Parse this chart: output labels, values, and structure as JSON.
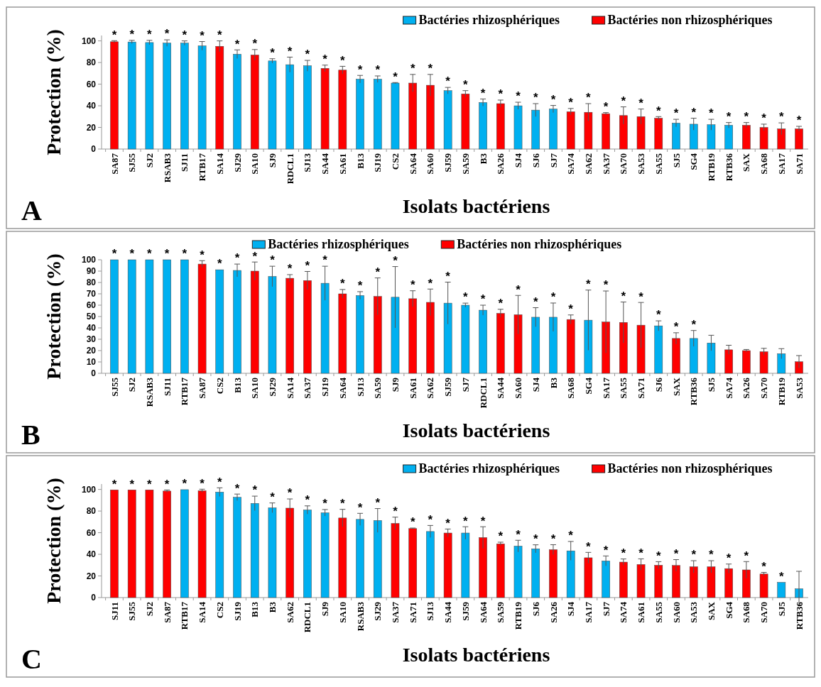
{
  "chart_data": [
    {
      "type": "bar",
      "xlabel": "Isolats bactériens",
      "ylabel": "Protection (%)",
      "annotations": [
        "A"
      ],
      "legend": "top right",
      "ylim": [
        0,
        105
      ],
      "yticks": [
        0,
        20,
        40,
        60,
        80,
        100
      ],
      "categories": [
        "SA87",
        "SJ55",
        "SJ2",
        "RSAB3",
        "SJ11",
        "RTB17",
        "SA14",
        "SJ29",
        "SA10",
        "SJ9",
        "RDCL1",
        "SJ13",
        "SA44",
        "SA61",
        "B13",
        "SJ19",
        "CS2",
        "SA64",
        "SA60",
        "SJ59",
        "SA59",
        "B3",
        "SA26",
        "SJ4",
        "SJ6",
        "SJ7",
        "SA74",
        "SA62",
        "SA37",
        "SA70",
        "SA53",
        "SA55",
        "SJ5",
        "SG4",
        "RTB19",
        "RTB36",
        "SAX",
        "SA68",
        "SA17",
        "SA71"
      ],
      "series": [
        {
          "name": "Bactéries rhizosphériques",
          "color": "#00b0f0",
          "values": [
            null,
            99,
            98.5,
            98,
            98,
            95.4,
            null,
            87.7,
            null,
            81.5,
            78,
            77,
            null,
            null,
            64.6,
            64.6,
            61,
            null,
            null,
            54,
            null,
            43,
            null,
            40,
            36,
            37,
            null,
            null,
            null,
            null,
            null,
            null,
            24,
            23,
            22.5,
            22,
            null,
            null,
            null,
            null
          ],
          "errors": [
            null,
            1.5,
            2,
            3,
            2,
            4,
            null,
            4,
            null,
            2,
            7,
            5,
            null,
            null,
            3.5,
            3,
            0.5,
            null,
            null,
            3,
            null,
            3.3,
            null,
            3.3,
            6,
            3.3,
            null,
            null,
            null,
            null,
            null,
            null,
            3.5,
            5.5,
            5,
            2.5,
            null,
            null,
            null,
            null
          ],
          "value_labels": [
            null,
            "*",
            "*",
            "*",
            "*",
            "*",
            null,
            "*",
            null,
            "*",
            "*",
            "*",
            null,
            null,
            "*",
            "*",
            "*",
            null,
            null,
            "*",
            null,
            "*",
            null,
            "*",
            "*",
            "*",
            null,
            null,
            null,
            null,
            null,
            null,
            "*",
            "*",
            "*",
            "*",
            null,
            null,
            null,
            null
          ]
        },
        {
          "name": "Bactéries non rhizosphériques",
          "color": "#ff0000",
          "values": [
            99.2,
            null,
            null,
            null,
            null,
            null,
            95,
            null,
            87,
            null,
            null,
            null,
            74.6,
            73,
            null,
            null,
            null,
            61,
            59,
            null,
            51,
            null,
            42,
            null,
            null,
            null,
            34.5,
            34,
            32.7,
            31,
            30,
            28.5,
            null,
            null,
            null,
            null,
            22,
            20,
            18.7,
            18.7
          ],
          "errors": [
            1,
            null,
            null,
            null,
            null,
            null,
            5,
            null,
            5,
            null,
            null,
            null,
            3,
            3.5,
            null,
            null,
            null,
            8,
            10,
            null,
            3,
            null,
            3.3,
            null,
            null,
            null,
            3,
            8,
            1,
            8,
            7,
            1.5,
            null,
            null,
            null,
            null,
            2.5,
            3,
            5.5,
            2.3
          ],
          "value_labels": [
            "*",
            null,
            null,
            null,
            null,
            null,
            "*",
            null,
            "*",
            null,
            null,
            null,
            "*",
            "*",
            null,
            null,
            null,
            "*",
            "*",
            null,
            "*",
            null,
            "*",
            null,
            null,
            null,
            "*",
            "*",
            "*",
            "*",
            "*",
            "*",
            null,
            null,
            null,
            null,
            "*",
            "*",
            "*",
            "*"
          ]
        }
      ]
    },
    {
      "type": "bar",
      "xlabel": "Isolats bactériens",
      "ylabel": "Protection (%)",
      "annotations": [
        "B"
      ],
      "legend": "top",
      "ylim": [
        0,
        100
      ],
      "yticks": [
        0,
        10,
        20,
        30,
        40,
        50,
        60,
        70,
        80,
        90,
        100
      ],
      "categories": [
        "SJ55",
        "SJ2",
        "RSAB3",
        "SJ11",
        "RTB17",
        "SA87",
        "CS2",
        "B13",
        "SA10",
        "SJ29",
        "SA14",
        "SA37",
        "SJ19",
        "SA64",
        "SJ13",
        "SA59",
        "SJ9",
        "SA61",
        "SA62",
        "SJ59",
        "SJ7",
        "RDCL1",
        "SA44",
        "SA60",
        "SJ4",
        "B3",
        "SA68",
        "SG4",
        "SA17",
        "SA55",
        "SA71",
        "SJ6",
        "SAX",
        "RTB36",
        "SJ5",
        "SA74",
        "SA26",
        "SA70",
        "RTB19",
        "SA53"
      ],
      "series": [
        {
          "name": "Bactéries rhizosphériques",
          "color": "#00b0f0",
          "values": [
            100,
            100,
            100,
            100,
            100,
            null,
            91.2,
            90.6,
            null,
            85.3,
            null,
            null,
            79.3,
            null,
            68.5,
            null,
            67,
            null,
            null,
            61.8,
            60,
            55.6,
            null,
            null,
            49.4,
            49.4,
            null,
            46.8,
            null,
            null,
            null,
            41.8,
            null,
            30.7,
            26.7,
            null,
            null,
            null,
            17.3,
            null
          ],
          "errors": [
            null,
            null,
            null,
            null,
            null,
            null,
            null,
            5.6,
            null,
            9,
            null,
            null,
            15,
            null,
            3.4,
            null,
            27,
            null,
            null,
            18.5,
            1.8,
            4.4,
            null,
            null,
            8.4,
            12.5,
            null,
            26.5,
            null,
            null,
            null,
            4.4,
            null,
            7,
            6.8,
            null,
            null,
            null,
            4.4,
            null
          ],
          "value_labels": [
            "*",
            "*",
            "*",
            "*",
            "*",
            null,
            "*",
            "*",
            null,
            "*",
            null,
            null,
            "*",
            null,
            "*",
            null,
            "*",
            null,
            null,
            "*",
            "*",
            "*",
            null,
            null,
            "*",
            "*",
            null,
            "*",
            null,
            null,
            null,
            "*",
            null,
            "*",
            null,
            null,
            null,
            null,
            null,
            null
          ]
        },
        {
          "name": "Bactéries non rhizosphériques",
          "color": "#ff0000",
          "values": [
            null,
            null,
            null,
            null,
            null,
            96.2,
            null,
            null,
            90,
            null,
            83.7,
            81.7,
            null,
            70,
            null,
            67.7,
            null,
            65.7,
            62.5,
            null,
            null,
            null,
            52.8,
            51.6,
            null,
            null,
            47.4,
            null,
            45.2,
            44.8,
            42.4,
            null,
            30.7,
            null,
            null,
            20.7,
            20,
            19,
            null,
            10.2
          ],
          "errors": [
            null,
            null,
            null,
            null,
            null,
            3,
            null,
            null,
            8,
            null,
            3.2,
            8,
            null,
            3.8,
            null,
            16.3,
            null,
            7,
            11.7,
            null,
            null,
            null,
            3.6,
            17,
            null,
            null,
            4,
            null,
            27.3,
            18,
            20,
            null,
            5,
            null,
            null,
            4,
            1,
            3,
            null,
            5.4
          ],
          "value_labels": [
            null,
            null,
            null,
            null,
            null,
            "*",
            null,
            null,
            "*",
            null,
            "*",
            "*",
            null,
            "*",
            null,
            "*",
            null,
            "*",
            "*",
            null,
            null,
            null,
            "*",
            "*",
            null,
            null,
            "*",
            null,
            "*",
            "*",
            "*",
            null,
            "*",
            null,
            null,
            null,
            null,
            null,
            null,
            null
          ]
        }
      ]
    },
    {
      "type": "bar",
      "xlabel": "Isolats bactériens",
      "ylabel": "Protection (%)",
      "annotations": [
        "C"
      ],
      "legend": "top right",
      "ylim": [
        0,
        105
      ],
      "yticks": [
        0,
        20,
        40,
        60,
        80,
        100
      ],
      "categories": [
        "SJ11",
        "SJ55",
        "SJ2",
        "SA87",
        "RTB17",
        "SA14",
        "CS2",
        "SJ19",
        "B13",
        "B3",
        "SA62",
        "RDCL1",
        "SJ9",
        "SA10",
        "RSAB3",
        "SJ29",
        "SA37",
        "SA71",
        "SJ13",
        "SA44",
        "SJ59",
        "SA64",
        "SA59",
        "RTB19",
        "SJ6",
        "SA26",
        "SJ4",
        "SA17",
        "SJ7",
        "SA74",
        "SA61",
        "SA55",
        "SA60",
        "SA53",
        "SAX",
        "SG4",
        "SA68",
        "SA70",
        "SJ5",
        "RTB36"
      ],
      "series": [
        {
          "name": "Bactéries rhizosphériques",
          "color": "#00b0f0",
          "values": [
            null,
            null,
            null,
            null,
            99.8,
            null,
            97.5,
            92.7,
            87.1,
            83,
            null,
            81,
            78.4,
            null,
            72.3,
            71.3,
            null,
            null,
            61.1,
            null,
            59.7,
            null,
            null,
            47.6,
            45.1,
            null,
            43.2,
            null,
            33.9,
            null,
            null,
            null,
            null,
            null,
            null,
            null,
            null,
            null,
            14.1,
            8.1
          ],
          "errors": [
            null,
            null,
            null,
            null,
            null,
            null,
            4,
            3,
            6.7,
            4.5,
            null,
            3.8,
            3,
            null,
            5.6,
            11,
            null,
            null,
            5.6,
            null,
            5.8,
            null,
            null,
            5.4,
            3.7,
            null,
            8.7,
            null,
            4.6,
            null,
            null,
            null,
            null,
            null,
            null,
            null,
            null,
            null,
            null,
            16.2
          ],
          "value_labels": [
            null,
            null,
            null,
            null,
            "*",
            null,
            "*",
            "*",
            "*",
            "*",
            null,
            "*",
            "*",
            null,
            "*",
            "*",
            null,
            null,
            "*",
            null,
            "*",
            null,
            null,
            "*",
            "*",
            null,
            "*",
            null,
            "*",
            null,
            null,
            null,
            null,
            null,
            null,
            null,
            null,
            null,
            "*",
            null
          ]
        },
        {
          "name": "Bactéries non rhizosphériques",
          "color": "#ff0000",
          "values": [
            99.6,
            99.6,
            99.6,
            98.5,
            null,
            98.8,
            null,
            null,
            null,
            null,
            82.7,
            null,
            null,
            73.6,
            null,
            null,
            68.6,
            63.8,
            null,
            59.7,
            null,
            55.5,
            49.7,
            null,
            null,
            44.3,
            null,
            36.8,
            null,
            32.8,
            30.6,
            29.9,
            29.7,
            28.5,
            28.5,
            26.8,
            25.6,
            21.8,
            null,
            null
          ],
          "errors": [
            null,
            null,
            null,
            1,
            null,
            1.4,
            null,
            null,
            null,
            null,
            8.5,
            null,
            null,
            8,
            null,
            null,
            5.8,
            0.5,
            null,
            3.7,
            null,
            10,
            1.5,
            null,
            null,
            4.6,
            null,
            5,
            null,
            2.9,
            5.2,
            3.3,
            5.4,
            5.6,
            5.6,
            4.2,
            7.7,
            1.5,
            null,
            null
          ],
          "value_labels": [
            "*",
            "*",
            "*",
            "*",
            null,
            "*",
            null,
            null,
            null,
            null,
            "*",
            null,
            null,
            "*",
            null,
            null,
            "*",
            "*",
            null,
            "*",
            null,
            "*",
            "*",
            null,
            null,
            "*",
            null,
            "*",
            null,
            "*",
            "*",
            "*",
            "*",
            "*",
            "*",
            "*",
            "*",
            "*",
            null,
            null
          ]
        }
      ]
    }
  ]
}
